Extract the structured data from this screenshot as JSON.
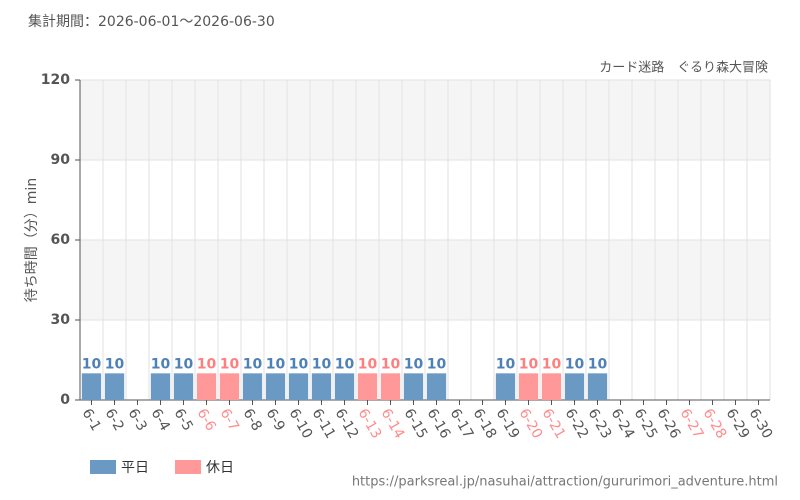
{
  "chart_data": {
    "type": "bar",
    "title": "集計期間：2026-06-01～2026-06-30",
    "subtitle": "カード迷路　ぐるり森大冒険",
    "y_label": "待ち時間（分）min",
    "source": "https://parksreal.jp/nasuhai/attraction/gururimori_adventure.html",
    "categories": [
      "6-1",
      "6-2",
      "6-3",
      "6-4",
      "6-5",
      "6-6",
      "6-7",
      "6-8",
      "6-9",
      "6-10",
      "6-11",
      "6-12",
      "6-13",
      "6-14",
      "6-15",
      "6-16",
      "6-17",
      "6-18",
      "6-19",
      "6-20",
      "6-21",
      "6-22",
      "6-23",
      "6-24",
      "6-25",
      "6-26",
      "6-27",
      "6-28",
      "6-29",
      "6-30"
    ],
    "category_colors": [
      "#555",
      "#555",
      "#555",
      "#555",
      "#555",
      "#ff8c8c",
      "#ff8c8c",
      "#555",
      "#555",
      "#555",
      "#555",
      "#555",
      "#ff8c8c",
      "#ff8c8c",
      "#555",
      "#555",
      "#555",
      "#555",
      "#555",
      "#ff8c8c",
      "#ff8c8c",
      "#555",
      "#555",
      "#555",
      "#555",
      "#555",
      "#ff8c8c",
      "#ff8c8c",
      "#555",
      "#555"
    ],
    "series": [
      {
        "name": "平日",
        "color": "#6a9ac4",
        "label_color": "#4f81b5",
        "values": [
          10,
          10,
          null,
          10,
          10,
          null,
          null,
          10,
          10,
          10,
          10,
          10,
          null,
          null,
          10,
          10,
          null,
          null,
          10,
          null,
          null,
          10,
          10,
          null,
          null,
          null,
          null,
          null,
          null,
          null
        ]
      },
      {
        "name": "休日",
        "color": "#ff9999",
        "label_color": "#ff7f7f",
        "values": [
          null,
          null,
          null,
          null,
          null,
          10,
          10,
          null,
          null,
          null,
          null,
          null,
          10,
          10,
          null,
          null,
          null,
          null,
          null,
          10,
          10,
          null,
          null,
          null,
          null,
          null,
          null,
          null,
          null,
          null
        ]
      }
    ],
    "ylim": [
      0,
      120
    ],
    "yticks": [
      0,
      30,
      60,
      90,
      120
    ],
    "grid": true,
    "legend": "bottom-left"
  }
}
